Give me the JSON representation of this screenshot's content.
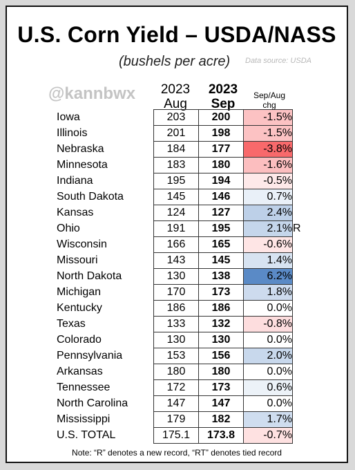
{
  "title": "U.S. Corn Yield – USDA/NASS",
  "subtitle": "(bushels per acre)",
  "source": "Data source: USDA",
  "watermark": "@kannbwx",
  "headers": {
    "aug_line1": "2023",
    "aug_line2": "Aug",
    "sep_line1": "2023",
    "sep_line2": "Sep",
    "chg_line1": "Sep/Aug",
    "chg_line2": "chg"
  },
  "note": "Note: “R” denotes a new record, “RT” denotes tied record",
  "colors": {
    "negative_max": "#f8696b",
    "positive_max": "#5a8ac6",
    "neutral": "#ffffff"
  },
  "chart_data": {
    "type": "table",
    "columns": [
      "2023 Aug",
      "2023 Sep",
      "Sep/Aug chg"
    ],
    "rows": [
      {
        "state": "Iowa",
        "aug": "203",
        "sep": "200",
        "chg": "-1.5%",
        "chg_value": -1.5,
        "mark": ""
      },
      {
        "state": "Illinois",
        "aug": "201",
        "sep": "198",
        "chg": "-1.5%",
        "chg_value": -1.5,
        "mark": ""
      },
      {
        "state": "Nebraska",
        "aug": "184",
        "sep": "177",
        "chg": "-3.8%",
        "chg_value": -3.8,
        "mark": ""
      },
      {
        "state": "Minnesota",
        "aug": "183",
        "sep": "180",
        "chg": "-1.6%",
        "chg_value": -1.6,
        "mark": ""
      },
      {
        "state": "Indiana",
        "aug": "195",
        "sep": "194",
        "chg": "-0.5%",
        "chg_value": -0.5,
        "mark": ""
      },
      {
        "state": "South Dakota",
        "aug": "145",
        "sep": "146",
        "chg": "0.7%",
        "chg_value": 0.7,
        "mark": ""
      },
      {
        "state": "Kansas",
        "aug": "124",
        "sep": "127",
        "chg": "2.4%",
        "chg_value": 2.4,
        "mark": ""
      },
      {
        "state": "Ohio",
        "aug": "191",
        "sep": "195",
        "chg": "2.1%",
        "chg_value": 2.1,
        "mark": "R"
      },
      {
        "state": "Wisconsin",
        "aug": "166",
        "sep": "165",
        "chg": "-0.6%",
        "chg_value": -0.6,
        "mark": ""
      },
      {
        "state": "Missouri",
        "aug": "143",
        "sep": "145",
        "chg": "1.4%",
        "chg_value": 1.4,
        "mark": ""
      },
      {
        "state": "North Dakota",
        "aug": "130",
        "sep": "138",
        "chg": "6.2%",
        "chg_value": 6.2,
        "mark": ""
      },
      {
        "state": "Michigan",
        "aug": "170",
        "sep": "173",
        "chg": "1.8%",
        "chg_value": 1.8,
        "mark": ""
      },
      {
        "state": "Kentucky",
        "aug": "186",
        "sep": "186",
        "chg": "0.0%",
        "chg_value": 0.0,
        "mark": ""
      },
      {
        "state": "Texas",
        "aug": "133",
        "sep": "132",
        "chg": "-0.8%",
        "chg_value": -0.8,
        "mark": ""
      },
      {
        "state": "Colorado",
        "aug": "130",
        "sep": "130",
        "chg": "0.0%",
        "chg_value": 0.0,
        "mark": ""
      },
      {
        "state": "Pennsylvania",
        "aug": "153",
        "sep": "156",
        "chg": "2.0%",
        "chg_value": 2.0,
        "mark": ""
      },
      {
        "state": "Arkansas",
        "aug": "180",
        "sep": "180",
        "chg": "0.0%",
        "chg_value": 0.0,
        "mark": ""
      },
      {
        "state": "Tennessee",
        "aug": "172",
        "sep": "173",
        "chg": "0.6%",
        "chg_value": 0.6,
        "mark": ""
      },
      {
        "state": "North Carolina",
        "aug": "147",
        "sep": "147",
        "chg": "0.0%",
        "chg_value": 0.0,
        "mark": ""
      },
      {
        "state": "Mississippi",
        "aug": "179",
        "sep": "182",
        "chg": "1.7%",
        "chg_value": 1.7,
        "mark": ""
      },
      {
        "state": "U.S. TOTAL",
        "aug": "175.1",
        "sep": "173.8",
        "chg": "-0.7%",
        "chg_value": -0.7,
        "mark": ""
      }
    ]
  }
}
